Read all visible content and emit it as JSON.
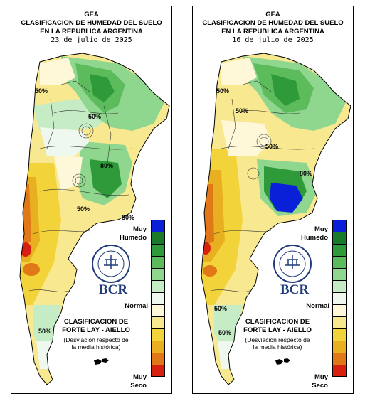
{
  "panels": [
    {
      "title1": "GEA",
      "title2": "CLASIFICACION DE HUMEDAD DEL SUELO",
      "title3": "EN LA REPUBLICA ARGENTINA",
      "date": "23 de julio de 2025",
      "contours": [
        "50%",
        "50%",
        "80%",
        "50%",
        "80%",
        "50%"
      ],
      "logo_text": "BCR",
      "seal_text": "BOLSA DE COMERCIO DE ROSARIO"
    },
    {
      "title1": "GEA",
      "title2": "CLASIFICACION DE HUMEDAD DEL SUELO",
      "title3": "EN LA REPUBLICA ARGENTINA",
      "date": "16 de julio de 2025",
      "contours": [
        "50%",
        "50%",
        "50%",
        "80%",
        "50%",
        "50%"
      ],
      "logo_text": "BCR",
      "seal_text": "BOLSA DE COMERCIO DE ROSARIO"
    }
  ],
  "legend": {
    "top_label_1": "Muy",
    "top_label_2": "Humedo",
    "middle_label": "Normal",
    "bottom_label_1": "Muy",
    "bottom_label_2": "Seco",
    "colors": [
      "#0a20d8",
      "#1a7a2a",
      "#2e9a3a",
      "#5cbc5c",
      "#8fd68f",
      "#c6ecc6",
      "#eef8ee",
      "#fff8d8",
      "#f8e890",
      "#f2d43a",
      "#e8b020",
      "#e07818",
      "#d82010"
    ]
  },
  "classification": {
    "line1": "CLASIFICACION DE",
    "line2": "FORTE LAY - AIELLO",
    "desc1": "(Desviación respecto de",
    "desc2": "la media histórica)"
  }
}
